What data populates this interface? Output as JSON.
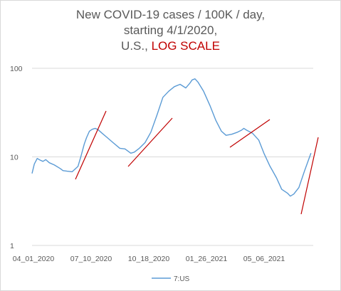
{
  "chart_data": {
    "type": "line",
    "title_line1": "New COVID-19 cases / 100K / day,",
    "title_line2": "starting 4/1/2020,",
    "title_line3_prefix": "U.S., ",
    "title_line3_accent": "LOG SCALE",
    "xlabel": "",
    "ylabel": "",
    "y_scale": "log",
    "ylim": [
      1,
      100
    ],
    "y_ticks": [
      {
        "value": 100,
        "label": "100"
      },
      {
        "value": 10,
        "label": "10"
      },
      {
        "value": 1,
        "label": "1"
      }
    ],
    "x_tick_labels": [
      "04_01_2020",
      "07_10_2020",
      "10_18_2020",
      "01_26_2021",
      "05_06_2021"
    ],
    "grid": "horizontal",
    "legend_position": "bottom",
    "series": [
      {
        "name": "7:US",
        "color": "#5b9bd5",
        "x": [
          "2020-04-01",
          "2020-04-05",
          "2020-04-10",
          "2020-04-15",
          "2020-04-20",
          "2020-04-25",
          "2020-05-01",
          "2020-05-10",
          "2020-05-20",
          "2020-05-25",
          "2020-06-01",
          "2020-06-10",
          "2020-06-20",
          "2020-06-25",
          "2020-07-01",
          "2020-07-05",
          "2020-07-10",
          "2020-07-15",
          "2020-07-20",
          "2020-07-25",
          "2020-08-01",
          "2020-08-10",
          "2020-08-20",
          "2020-09-01",
          "2020-09-10",
          "2020-09-20",
          "2020-09-26",
          "2020-10-05",
          "2020-10-15",
          "2020-10-25",
          "2020-11-05",
          "2020-11-15",
          "2020-11-25",
          "2020-12-05",
          "2020-12-15",
          "2020-12-25",
          "2021-01-01",
          "2021-01-05",
          "2021-01-10",
          "2021-01-15",
          "2021-01-25",
          "2021-02-05",
          "2021-02-15",
          "2021-02-25",
          "2021-03-05",
          "2021-03-15",
          "2021-03-25",
          "2021-04-01",
          "2021-04-05",
          "2021-04-10",
          "2021-04-20",
          "2021-05-01",
          "2021-05-10",
          "2021-05-20",
          "2021-06-01",
          "2021-06-10",
          "2021-06-20",
          "2021-06-25",
          "2021-07-01",
          "2021-07-10",
          "2021-07-20",
          "2021-07-31"
        ],
        "values": [
          6.5,
          8.3,
          9.6,
          9.2,
          8.9,
          9.3,
          8.6,
          8.1,
          7.4,
          7.0,
          6.9,
          6.8,
          7.8,
          10.0,
          14.0,
          16.5,
          19.5,
          20.5,
          21.0,
          20.3,
          18.5,
          16.5,
          14.5,
          12.5,
          12.3,
          11.0,
          11.3,
          12.5,
          14.5,
          19.0,
          30.0,
          47.0,
          55.0,
          62.0,
          66.0,
          60.0,
          68.0,
          74.0,
          76.0,
          70.0,
          55.0,
          38.0,
          26.0,
          19.5,
          17.5,
          18.0,
          19.0,
          20.0,
          21.0,
          20.0,
          18.5,
          15.5,
          11.0,
          8.0,
          5.8,
          4.3,
          3.9,
          3.6,
          3.8,
          4.5,
          7.0,
          11.0
        ]
      }
    ],
    "trend_line_color": "#c00000"
  }
}
